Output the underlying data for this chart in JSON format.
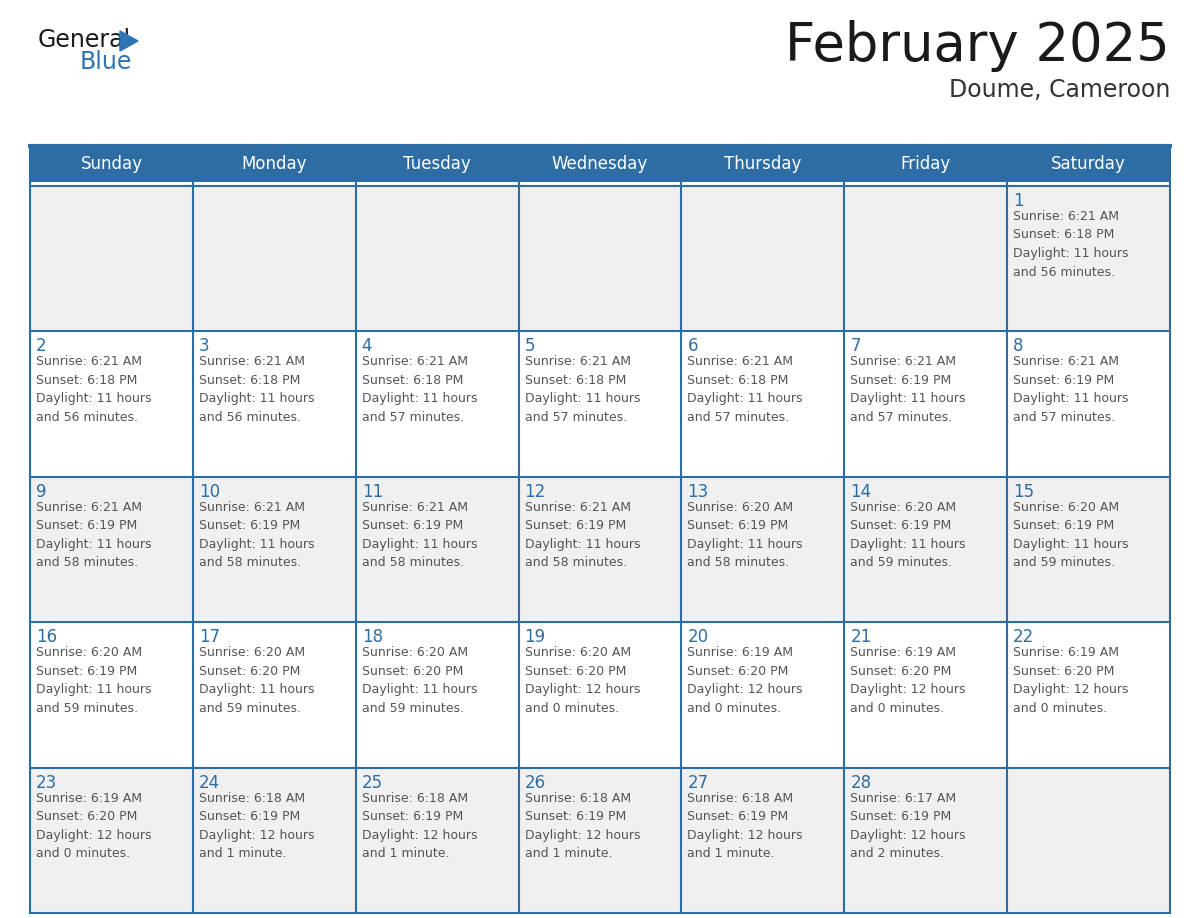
{
  "title": "February 2025",
  "subtitle": "Doume, Cameroon",
  "days_of_week": [
    "Sunday",
    "Monday",
    "Tuesday",
    "Wednesday",
    "Thursday",
    "Friday",
    "Saturday"
  ],
  "header_bg": "#2e6da4",
  "header_text": "#ffffff",
  "cell_bg_light": "#f0f0f0",
  "cell_bg_white": "#ffffff",
  "border_color": "#2e6da4",
  "day_num_color": "#2e6da4",
  "cell_text_color": "#555555",
  "title_color": "#1a1a1a",
  "subtitle_color": "#333333",
  "logo_general_color": "#1a1a1a",
  "logo_blue_color": "#2e75b6",
  "weeks": [
    [
      {
        "day": null,
        "info": null
      },
      {
        "day": null,
        "info": null
      },
      {
        "day": null,
        "info": null
      },
      {
        "day": null,
        "info": null
      },
      {
        "day": null,
        "info": null
      },
      {
        "day": null,
        "info": null
      },
      {
        "day": 1,
        "info": "Sunrise: 6:21 AM\nSunset: 6:18 PM\nDaylight: 11 hours\nand 56 minutes."
      }
    ],
    [
      {
        "day": 2,
        "info": "Sunrise: 6:21 AM\nSunset: 6:18 PM\nDaylight: 11 hours\nand 56 minutes."
      },
      {
        "day": 3,
        "info": "Sunrise: 6:21 AM\nSunset: 6:18 PM\nDaylight: 11 hours\nand 56 minutes."
      },
      {
        "day": 4,
        "info": "Sunrise: 6:21 AM\nSunset: 6:18 PM\nDaylight: 11 hours\nand 57 minutes."
      },
      {
        "day": 5,
        "info": "Sunrise: 6:21 AM\nSunset: 6:18 PM\nDaylight: 11 hours\nand 57 minutes."
      },
      {
        "day": 6,
        "info": "Sunrise: 6:21 AM\nSunset: 6:18 PM\nDaylight: 11 hours\nand 57 minutes."
      },
      {
        "day": 7,
        "info": "Sunrise: 6:21 AM\nSunset: 6:19 PM\nDaylight: 11 hours\nand 57 minutes."
      },
      {
        "day": 8,
        "info": "Sunrise: 6:21 AM\nSunset: 6:19 PM\nDaylight: 11 hours\nand 57 minutes."
      }
    ],
    [
      {
        "day": 9,
        "info": "Sunrise: 6:21 AM\nSunset: 6:19 PM\nDaylight: 11 hours\nand 58 minutes."
      },
      {
        "day": 10,
        "info": "Sunrise: 6:21 AM\nSunset: 6:19 PM\nDaylight: 11 hours\nand 58 minutes."
      },
      {
        "day": 11,
        "info": "Sunrise: 6:21 AM\nSunset: 6:19 PM\nDaylight: 11 hours\nand 58 minutes."
      },
      {
        "day": 12,
        "info": "Sunrise: 6:21 AM\nSunset: 6:19 PM\nDaylight: 11 hours\nand 58 minutes."
      },
      {
        "day": 13,
        "info": "Sunrise: 6:20 AM\nSunset: 6:19 PM\nDaylight: 11 hours\nand 58 minutes."
      },
      {
        "day": 14,
        "info": "Sunrise: 6:20 AM\nSunset: 6:19 PM\nDaylight: 11 hours\nand 59 minutes."
      },
      {
        "day": 15,
        "info": "Sunrise: 6:20 AM\nSunset: 6:19 PM\nDaylight: 11 hours\nand 59 minutes."
      }
    ],
    [
      {
        "day": 16,
        "info": "Sunrise: 6:20 AM\nSunset: 6:19 PM\nDaylight: 11 hours\nand 59 minutes."
      },
      {
        "day": 17,
        "info": "Sunrise: 6:20 AM\nSunset: 6:20 PM\nDaylight: 11 hours\nand 59 minutes."
      },
      {
        "day": 18,
        "info": "Sunrise: 6:20 AM\nSunset: 6:20 PM\nDaylight: 11 hours\nand 59 minutes."
      },
      {
        "day": 19,
        "info": "Sunrise: 6:20 AM\nSunset: 6:20 PM\nDaylight: 12 hours\nand 0 minutes."
      },
      {
        "day": 20,
        "info": "Sunrise: 6:19 AM\nSunset: 6:20 PM\nDaylight: 12 hours\nand 0 minutes."
      },
      {
        "day": 21,
        "info": "Sunrise: 6:19 AM\nSunset: 6:20 PM\nDaylight: 12 hours\nand 0 minutes."
      },
      {
        "day": 22,
        "info": "Sunrise: 6:19 AM\nSunset: 6:20 PM\nDaylight: 12 hours\nand 0 minutes."
      }
    ],
    [
      {
        "day": 23,
        "info": "Sunrise: 6:19 AM\nSunset: 6:20 PM\nDaylight: 12 hours\nand 0 minutes."
      },
      {
        "day": 24,
        "info": "Sunrise: 6:18 AM\nSunset: 6:19 PM\nDaylight: 12 hours\nand 1 minute."
      },
      {
        "day": 25,
        "info": "Sunrise: 6:18 AM\nSunset: 6:19 PM\nDaylight: 12 hours\nand 1 minute."
      },
      {
        "day": 26,
        "info": "Sunrise: 6:18 AM\nSunset: 6:19 PM\nDaylight: 12 hours\nand 1 minute."
      },
      {
        "day": 27,
        "info": "Sunrise: 6:18 AM\nSunset: 6:19 PM\nDaylight: 12 hours\nand 1 minute."
      },
      {
        "day": 28,
        "info": "Sunrise: 6:17 AM\nSunset: 6:19 PM\nDaylight: 12 hours\nand 2 minutes."
      },
      {
        "day": null,
        "info": null
      }
    ]
  ]
}
